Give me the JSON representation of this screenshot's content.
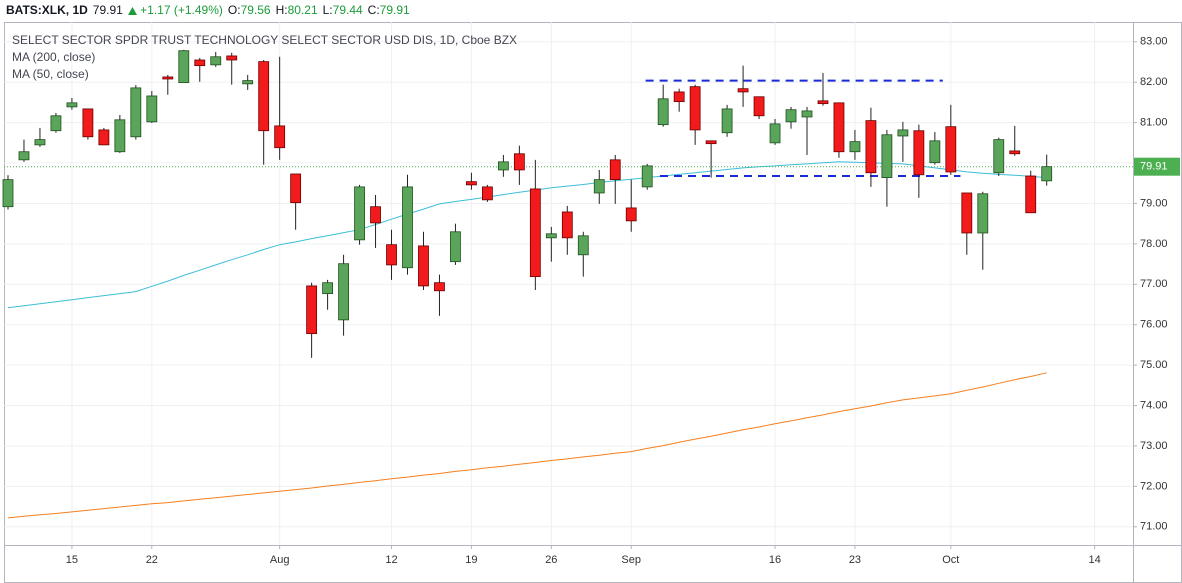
{
  "chart_data": {
    "type": "candlestick",
    "title": "SELECT SECTOR SPDR TRUST TECHNOLOGY SELECT SECTOR USD DIS, 1D, Cboe BZX",
    "header": {
      "symbol": "BATS:XLK, 1D",
      "change": "+1.17 (+1.49%)",
      "labels": [
        "O:",
        "H:",
        "L:",
        "C:"
      ]
    },
    "open": [
      78.92,
      80.08,
      80.45,
      80.8,
      81.39,
      81.34,
      80.82,
      80.28,
      80.65,
      81.02,
      82.13,
      81.99,
      82.55,
      82.43,
      82.65,
      81.96,
      82.51,
      80.92,
      79.73,
      76.96,
      76.77,
      76.12,
      78.1,
      78.92,
      77.98,
      77.41,
      77.95,
      77.04,
      77.56,
      79.54,
      79.41,
      79.83,
      80.23,
      79.36,
      78.15,
      78.79,
      77.73,
      79.26,
      80.08,
      78.89,
      79.41,
      80.95,
      81.76,
      81.89,
      80.55,
      80.75,
      81.84,
      81.64,
      80.5,
      81.02,
      81.14,
      81.54,
      81.49,
      80.28,
      81.05,
      79.64,
      80.67,
      80.8,
      80.01,
      80.9,
      79.26,
      78.27,
      79.76,
      80.3,
      79.68,
      79.56
    ],
    "high": [
      79.7,
      80.58,
      80.87,
      81.24,
      81.61,
      81.34,
      80.87,
      81.19,
      81.93,
      81.78,
      82.18,
      82.8,
      82.6,
      82.75,
      82.73,
      82.18,
      82.55,
      82.63,
      79.73,
      77.04,
      77.11,
      77.73,
      79.46,
      79.21,
      78.35,
      79.71,
      78.3,
      77.24,
      78.5,
      79.76,
      79.46,
      80.2,
      80.43,
      80.08,
      78.42,
      78.94,
      78.3,
      79.83,
      80.2,
      79.59,
      79.98,
      81.94,
      81.84,
      81.94,
      80.55,
      81.44,
      82.41,
      81.64,
      81.09,
      81.39,
      81.39,
      82.23,
      81.49,
      80.82,
      81.37,
      80.82,
      81.02,
      80.95,
      80.77,
      81.44,
      79.26,
      79.29,
      80.63,
      80.92,
      79.81,
      80.21
    ],
    "low": [
      78.85,
      80.03,
      80.4,
      80.75,
      81.32,
      80.58,
      80.45,
      80.25,
      80.58,
      80.99,
      81.69,
      81.99,
      82.01,
      82.38,
      81.94,
      81.81,
      79.96,
      80.08,
      78.35,
      75.18,
      76.37,
      75.73,
      77.98,
      77.9,
      77.11,
      77.24,
      76.86,
      76.22,
      77.48,
      79.34,
      79.04,
      79.66,
      79.46,
      76.86,
      77.56,
      77.73,
      77.19,
      78.99,
      78.99,
      78.3,
      79.34,
      80.9,
      81.27,
      80.45,
      79.64,
      80.65,
      81.39,
      81.09,
      80.45,
      80.85,
      80.2,
      81.42,
      80.13,
      80.08,
      79.41,
      78.92,
      80.03,
      79.14,
      79.96,
      79.71,
      77.73,
      77.36,
      79.68,
      80.18,
      78.77,
      79.44
    ],
    "close": [
      79.59,
      80.28,
      80.58,
      81.17,
      81.49,
      80.65,
      80.45,
      81.07,
      81.86,
      81.66,
      82.08,
      82.78,
      82.41,
      82.63,
      82.55,
      82.04,
      80.8,
      80.38,
      79.02,
      75.78,
      77.04,
      77.51,
      79.41,
      78.52,
      77.48,
      79.41,
      76.96,
      76.84,
      78.3,
      79.46,
      79.09,
      80.03,
      79.83,
      77.19,
      78.25,
      78.15,
      78.2,
      79.59,
      79.59,
      78.57,
      79.93,
      81.59,
      81.52,
      80.82,
      80.48,
      81.34,
      81.76,
      81.17,
      80.97,
      81.32,
      81.29,
      81.47,
      80.28,
      80.53,
      79.76,
      80.7,
      80.82,
      79.71,
      80.55,
      79.78,
      78.27,
      79.24,
      80.58,
      80.23,
      78.77,
      79.91
    ],
    "up_color": "#5aa55a",
    "down_color": "#f21a1a",
    "last_color": "#4caf50",
    "series": [
      {
        "name": "MA (200, close)",
        "color": "#f57f20",
        "values": [
          71.22,
          71.26,
          71.3,
          71.33,
          71.37,
          71.41,
          71.45,
          71.49,
          71.53,
          71.57,
          71.6,
          71.64,
          71.68,
          71.72,
          71.76,
          71.8,
          71.84,
          71.88,
          71.92,
          71.96,
          72.01,
          72.05,
          72.1,
          72.14,
          72.19,
          72.23,
          72.28,
          72.32,
          72.37,
          72.41,
          72.46,
          72.5,
          72.55,
          72.59,
          72.64,
          72.68,
          72.73,
          72.77,
          72.82,
          72.86,
          72.94,
          73.01,
          73.09,
          73.17,
          73.24,
          73.32,
          73.4,
          73.47,
          73.55,
          73.62,
          73.7,
          73.77,
          73.85,
          73.92,
          73.99,
          74.07,
          74.14,
          74.19,
          74.24,
          74.29,
          74.38,
          74.46,
          74.55,
          74.64,
          74.72,
          74.81
        ]
      },
      {
        "name": "MA (50, close)",
        "color": "#3bbfd6",
        "values": [
          76.42,
          76.47,
          76.52,
          76.57,
          76.62,
          76.67,
          76.72,
          76.77,
          76.82,
          76.95,
          77.08,
          77.22,
          77.35,
          77.48,
          77.61,
          77.73,
          77.86,
          77.98,
          78.05,
          78.13,
          78.2,
          78.28,
          78.35,
          78.48,
          78.61,
          78.74,
          78.86,
          78.99,
          79.05,
          79.1,
          79.16,
          79.22,
          79.28,
          79.33,
          79.39,
          79.43,
          79.47,
          79.52,
          79.56,
          79.6,
          79.64,
          79.68,
          79.72,
          79.76,
          79.8,
          79.84,
          79.88,
          79.91,
          79.93,
          79.96,
          79.98,
          80.01,
          80.03,
          80.02,
          80.01,
          79.99,
          79.98,
          79.93,
          79.88,
          79.83,
          79.78,
          79.75,
          79.72,
          79.7,
          79.67,
          79.64
        ]
      }
    ],
    "levels": [
      {
        "value": 82.04,
        "x": [
          39.9,
          58.5
        ],
        "color": "#1a2bd6"
      },
      {
        "value": 79.68,
        "x": [
          40.8,
          59.6
        ],
        "color": "#1a2bd6"
      }
    ],
    "xlim": [
      -0.25,
      70.4
    ],
    "xticks": [
      {
        "value": 4,
        "label": "15"
      },
      {
        "value": 9,
        "label": "22"
      },
      {
        "value": 17,
        "label": "Aug"
      },
      {
        "value": 24,
        "label": "12"
      },
      {
        "value": 29,
        "label": "19"
      },
      {
        "value": 34,
        "label": "26"
      },
      {
        "value": 39,
        "label": "Sep"
      },
      {
        "value": 48,
        "label": "16"
      },
      {
        "value": 53,
        "label": "23"
      },
      {
        "value": 59,
        "label": "Oct"
      },
      {
        "value": 68,
        "label": "14"
      }
    ],
    "ylim": [
      70.55,
      83.49
    ],
    "yticks": [
      {
        "value": 71,
        "label": "71.00"
      },
      {
        "value": 72,
        "label": "72.00"
      },
      {
        "value": 73,
        "label": "73.00"
      },
      {
        "value": 74,
        "label": "74.00"
      },
      {
        "value": 75,
        "label": "75.00"
      },
      {
        "value": 76,
        "label": "76.00"
      },
      {
        "value": 77,
        "label": "77.00"
      },
      {
        "value": 78,
        "label": "78.00"
      },
      {
        "value": 79,
        "label": "79.00"
      },
      {
        "value": 80,
        "label": "80.00"
      },
      {
        "value": 81,
        "label": "81.00"
      },
      {
        "value": 82,
        "label": "82.00"
      },
      {
        "value": 83,
        "label": "83.00"
      }
    ],
    "grid": true
  }
}
